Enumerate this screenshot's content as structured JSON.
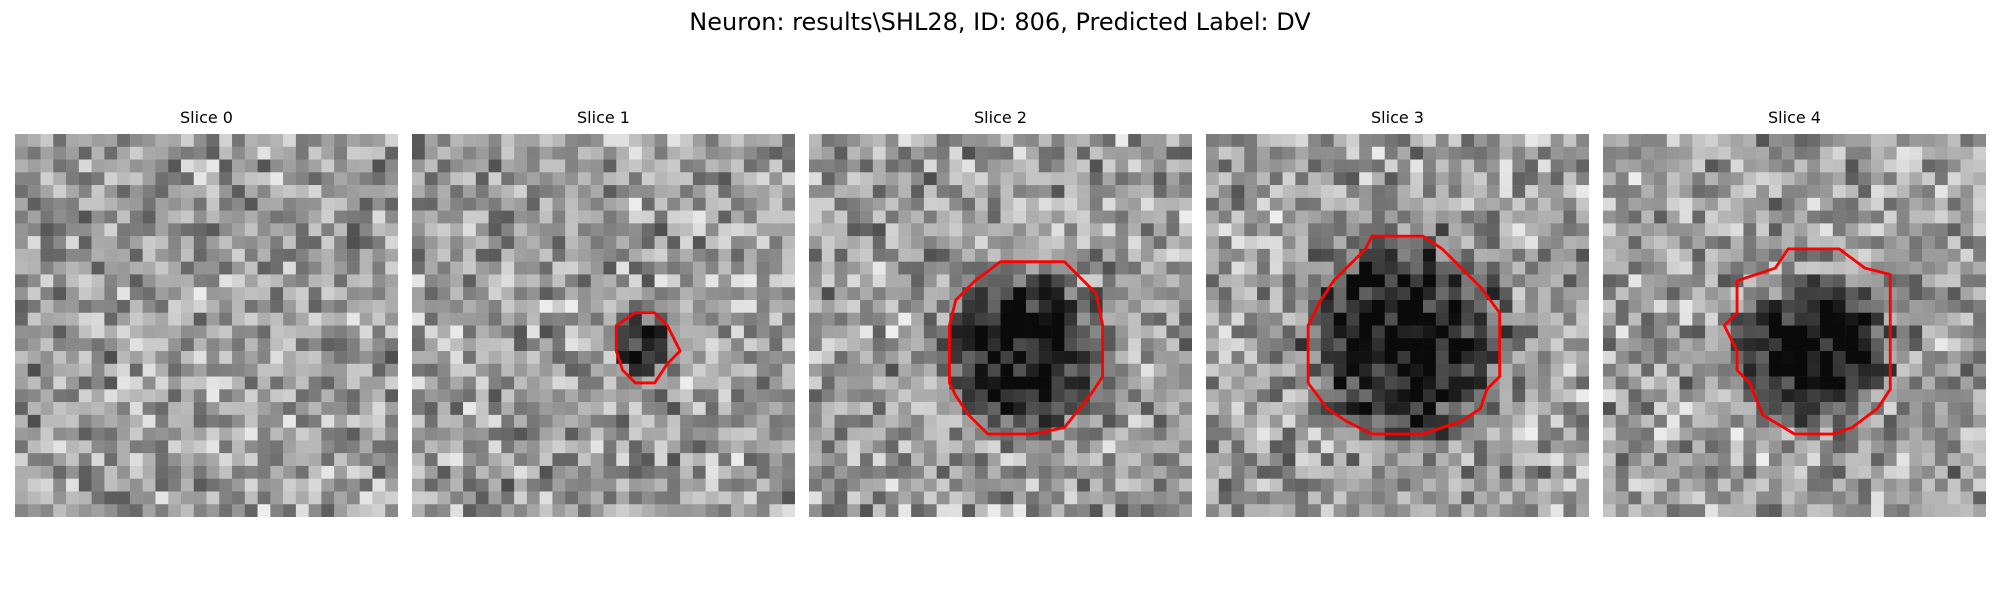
{
  "figure": {
    "title": "Neuron: results\\SHL28, ID: 806, Predicted Label: DV"
  },
  "colors": {
    "contour": "#ff0000",
    "background": "#ffffff",
    "colormap": "gray"
  },
  "slices": [
    {
      "title": "Slice 0",
      "seed": 11,
      "blob": null,
      "contour": null
    },
    {
      "title": "Slice 1",
      "seed": 23,
      "blob": {
        "cx": 18,
        "cy": 16.5,
        "r": 2.3,
        "strength": 0.45
      },
      "contour": [
        [
          17.5,
          14
        ],
        [
          19,
          14
        ],
        [
          20,
          15
        ],
        [
          21,
          17
        ],
        [
          20,
          18
        ],
        [
          19,
          19.5
        ],
        [
          17.5,
          19.5
        ],
        [
          16.5,
          18.5
        ],
        [
          16,
          17
        ],
        [
          16,
          15
        ]
      ]
    },
    {
      "title": "Slice 2",
      "seed": 37,
      "blob": {
        "cx": 17,
        "cy": 17,
        "r": 6.2,
        "strength": 0.55
      },
      "contour": [
        [
          15,
          10
        ],
        [
          20,
          10
        ],
        [
          22.5,
          12.5
        ],
        [
          23,
          15
        ],
        [
          23,
          19
        ],
        [
          22,
          20.5
        ],
        [
          20,
          23
        ],
        [
          17.5,
          23.5
        ],
        [
          14,
          23.5
        ],
        [
          12.5,
          22
        ],
        [
          11.5,
          20.5
        ],
        [
          11,
          19.5
        ],
        [
          11,
          15
        ],
        [
          11.5,
          13
        ],
        [
          13,
          11.5
        ]
      ]
    },
    {
      "title": "Slice 3",
      "seed": 53,
      "blob": {
        "cx": 15.5,
        "cy": 16,
        "r": 7.5,
        "strength": 0.55
      },
      "contour": [
        [
          13,
          8
        ],
        [
          17,
          8
        ],
        [
          18.5,
          9
        ],
        [
          20,
          10.5
        ],
        [
          21.5,
          12
        ],
        [
          23,
          14
        ],
        [
          23,
          19
        ],
        [
          22,
          20
        ],
        [
          21.5,
          21.5
        ],
        [
          20,
          22.5
        ],
        [
          17,
          23.5
        ],
        [
          13,
          23.5
        ],
        [
          11,
          22.5
        ],
        [
          9.5,
          21.5
        ],
        [
          8,
          19.5
        ],
        [
          8,
          15
        ],
        [
          9,
          13
        ],
        [
          10,
          11.5
        ],
        [
          11.5,
          10
        ],
        [
          12.5,
          9
        ]
      ]
    },
    {
      "title": "Slice 4",
      "seed": 71,
      "blob": {
        "cx": 16.5,
        "cy": 17,
        "r": 5.5,
        "strength": 0.6
      },
      "contour": [
        [
          14.5,
          9
        ],
        [
          18.5,
          9
        ],
        [
          20.5,
          10.5
        ],
        [
          22.5,
          11
        ],
        [
          22.5,
          20
        ],
        [
          21.5,
          21.5
        ],
        [
          19.5,
          23
        ],
        [
          18,
          23.5
        ],
        [
          15,
          23.5
        ],
        [
          12.5,
          22
        ],
        [
          11.5,
          19.5
        ],
        [
          10.5,
          18.5
        ],
        [
          10.5,
          17
        ],
        [
          9.5,
          15
        ],
        [
          10.5,
          14
        ],
        [
          10.5,
          11.5
        ],
        [
          12,
          11
        ],
        [
          13.5,
          10.5
        ]
      ]
    }
  ]
}
